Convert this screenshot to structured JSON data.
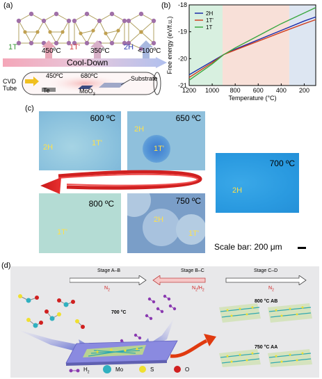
{
  "panel_a": {
    "label": "(a)",
    "phases": [
      "1T",
      "1T'",
      "2H"
    ],
    "temps": [
      "450ºC",
      "350ºC",
      "<100ºC"
    ],
    "cooldown": "Cool-Down",
    "cvd": {
      "line1": "CVD",
      "line2": "Tube",
      "t1": "450ºC",
      "t2": "680ºC",
      "te": "Te",
      "moo": "MoO",
      "moo_sub": "3",
      "substrate": "Substrate"
    },
    "colors": {
      "t1": "#3a9a3a",
      "t1p": "#d44040",
      "h2": "#3040b0",
      "mo": "#8a7a40",
      "te": "#a070a8"
    }
  },
  "panel_b": {
    "label": "(b)",
    "chart_data": {
      "type": "line",
      "ylabel": "Free energy (eV/f.u.)",
      "xlabel": "Temperature (°C)",
      "xlim": [
        1200,
        100
      ],
      "ylim": [
        -21,
        -18
      ],
      "x_ticks": [
        1200,
        1000,
        800,
        600,
        400,
        200
      ],
      "y_ticks": [
        -18,
        -19,
        -20,
        -21
      ],
      "regions": [
        {
          "from": 1200,
          "to": 910,
          "color": "#d8f0e0"
        },
        {
          "from": 910,
          "to": 330,
          "color": "#f8e0d8"
        },
        {
          "from": 330,
          "to": 100,
          "color": "#dde6f2"
        }
      ],
      "series": [
        {
          "name": "2H",
          "color": "#1a2aa8",
          "x": [
            1200,
            1000,
            900,
            800,
            600,
            400,
            200,
            100
          ],
          "y": [
            -20.6,
            -20.1,
            -19.85,
            -19.65,
            -19.3,
            -18.95,
            -18.6,
            -18.45
          ]
        },
        {
          "name": "1T'",
          "color": "#d04020",
          "x": [
            1200,
            1000,
            900,
            800,
            600,
            400,
            200,
            100
          ],
          "y": [
            -20.7,
            -20.15,
            -19.85,
            -19.68,
            -19.35,
            -19.02,
            -18.7,
            -18.55
          ]
        },
        {
          "name": "1T",
          "color": "#3aa840",
          "x": [
            1200,
            1000,
            900,
            800,
            600,
            400,
            200,
            100
          ],
          "y": [
            -20.8,
            -20.2,
            -19.85,
            -19.6,
            -19.15,
            -18.7,
            -18.3,
            -18.1
          ]
        }
      ]
    }
  },
  "panel_c": {
    "label": "(c)",
    "images": [
      {
        "temp": "600 ºC",
        "phases": [
          "2H",
          "1T'"
        ]
      },
      {
        "temp": "650 ºC",
        "phases": [
          "2H",
          "1T'"
        ]
      },
      {
        "temp": "700 ºC",
        "phases": [
          "2H"
        ]
      },
      {
        "temp": "800 ºC",
        "phases": [
          "1T'"
        ]
      },
      {
        "temp": "750 ºC",
        "phases": [
          "2H",
          "1T'"
        ]
      }
    ],
    "scalebar": "Scale bar: 200 μm"
  },
  "panel_d": {
    "label": "(d)",
    "stages": [
      {
        "name": "Stage A–B",
        "gas": "N",
        "gas_sub": "2"
      },
      {
        "name": "Stage B–C",
        "gas": "N",
        "gas_sub": "2",
        "gas_tail": "/H",
        "gas_tail_sub": "2"
      },
      {
        "name": "Stage C–D",
        "gas": "N",
        "gas_sub": "2"
      }
    ],
    "temp_700": "700 °C",
    "label_ab": "800 °C AB",
    "label_aa": "750 °C AA",
    "legend": [
      {
        "sym": "H",
        "sub": "2",
        "color": "#8a3ab0"
      },
      {
        "sym": "Mo",
        "color": "#30b0c0"
      },
      {
        "sym": "S",
        "color": "#f0e030"
      },
      {
        "sym": "O",
        "color": "#d02020"
      }
    ]
  }
}
